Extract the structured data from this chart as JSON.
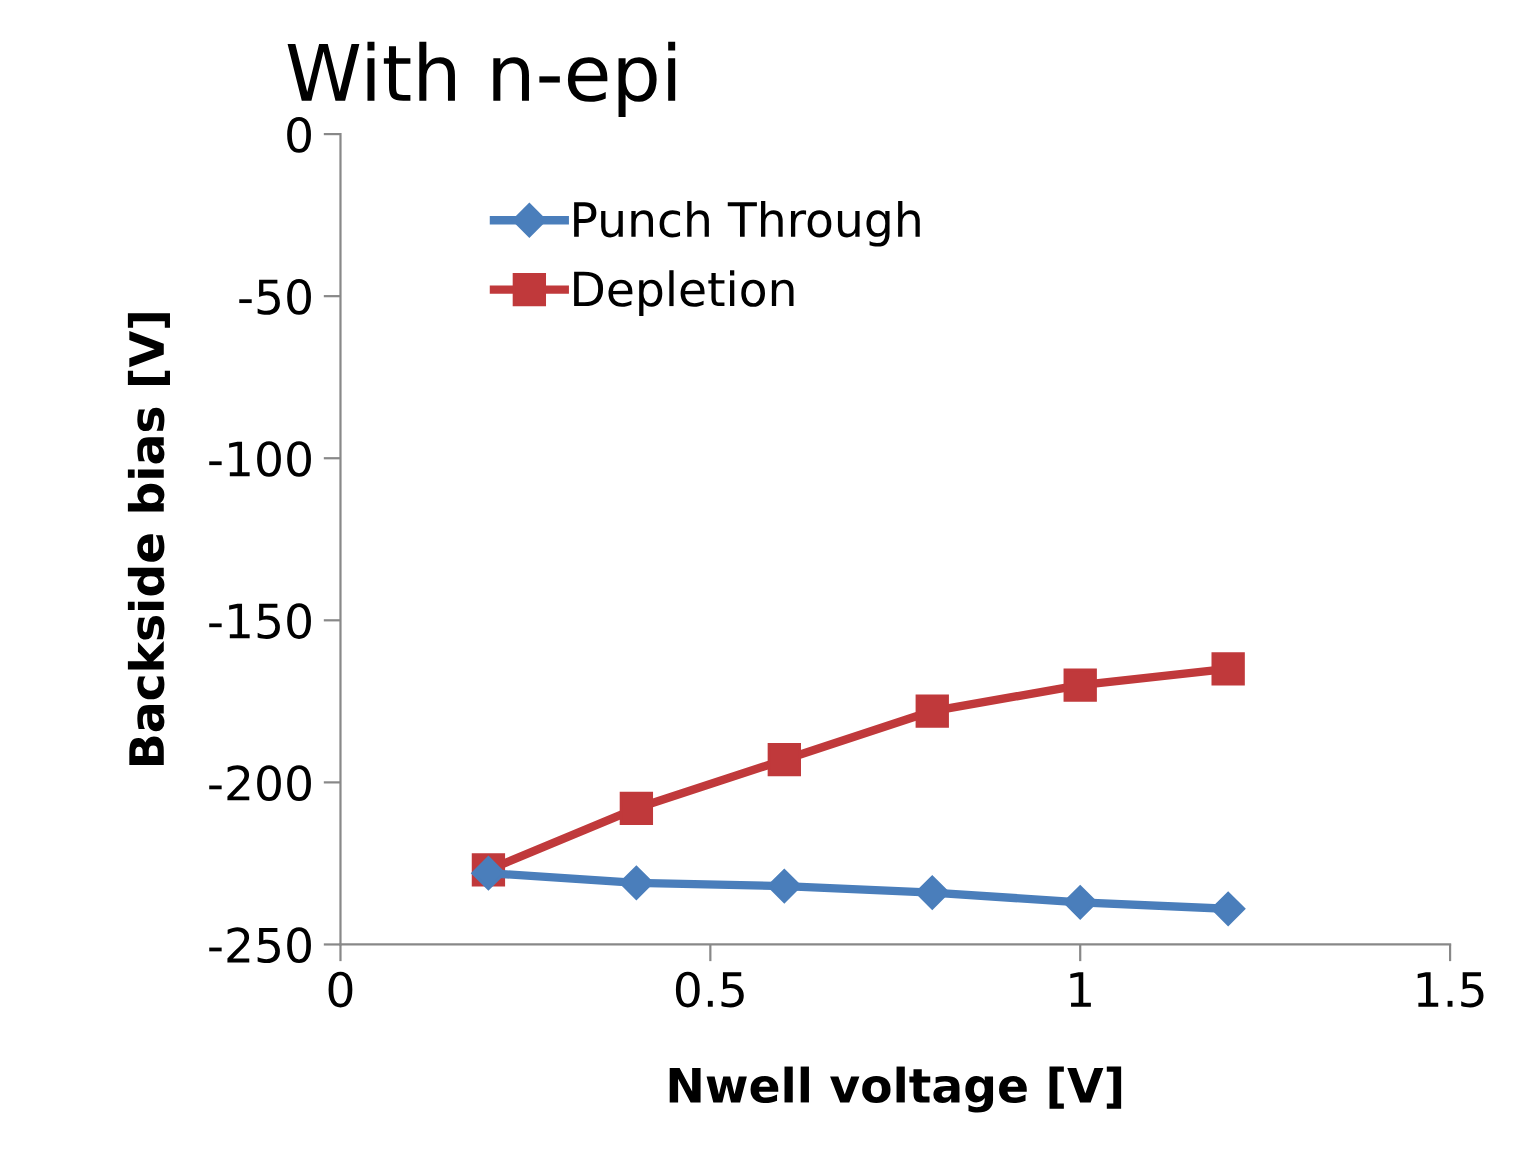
{
  "chart_data": {
    "type": "line",
    "title": "With n-epi",
    "xlabel": "Nwell voltage [V]",
    "ylabel": "Backside bias [V]",
    "x": [
      0.2,
      0.4,
      0.6,
      0.8,
      1.0,
      1.2
    ],
    "series": [
      {
        "name": "Punch Through",
        "color": "#4a7ebb",
        "marker": "diamond",
        "values": [
          -228,
          -231,
          -232,
          -234,
          -237,
          -239
        ]
      },
      {
        "name": "Depletion",
        "color": "#c0393b",
        "marker": "square",
        "values": [
          -227,
          -208,
          -193,
          -178,
          -170,
          -165
        ]
      }
    ],
    "xlim": [
      0,
      1.5
    ],
    "xticks": [
      0,
      0.5,
      1,
      1.5
    ],
    "ylim": [
      -250,
      0
    ],
    "yticks": [
      0,
      -50,
      -100,
      -150,
      -200,
      -250
    ],
    "grid": false,
    "legend": "top left",
    "line_style": "solid"
  }
}
